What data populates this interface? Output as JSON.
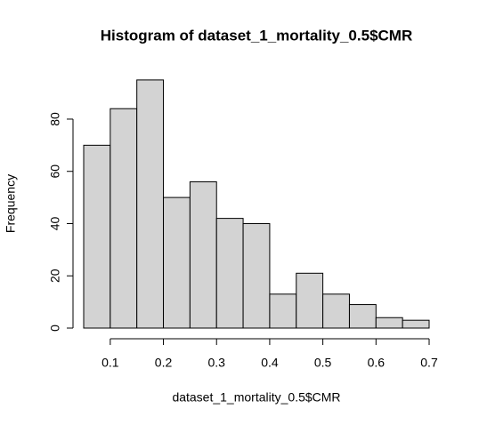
{
  "chart_data": {
    "type": "histogram",
    "title": "Histogram of dataset_1_mortality_0.5$CMR",
    "x_label": "dataset_1_mortality_0.5$CMR",
    "y_label": "Frequency",
    "bins": [
      0.05,
      0.1,
      0.15,
      0.2,
      0.25,
      0.3,
      0.35,
      0.4,
      0.45,
      0.5,
      0.55,
      0.6,
      0.65,
      0.7
    ],
    "values": [
      70,
      84,
      95,
      50,
      56,
      42,
      40,
      13,
      21,
      13,
      9,
      4,
      3
    ],
    "color": "#d3d3d3",
    "xlim": [
      0.05,
      0.7
    ],
    "xticks": [
      0.1,
      0.2,
      0.3,
      0.4,
      0.5,
      0.6,
      0.7
    ],
    "ylim": [
      0,
      95
    ],
    "yticks": [
      0,
      20,
      40,
      60,
      80
    ]
  }
}
